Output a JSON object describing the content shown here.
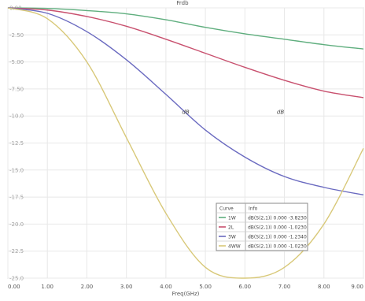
{
  "chart_data": {
    "type": "line",
    "title": "Frdb",
    "xlabel": "Freq(GHz)",
    "ylabel": "",
    "xlim": [
      0,
      9
    ],
    "ylim": [
      -25,
      0
    ],
    "grid": true,
    "x_ticks": [
      0,
      1,
      2,
      3,
      4,
      5,
      6,
      7,
      8,
      9
    ],
    "x_tick_labels": [
      "0.00",
      "1.00",
      "2.00",
      "3.00",
      "4.00",
      "5.00",
      "6.00",
      "7.00",
      "8.00",
      "9.00"
    ],
    "y_ticks": [
      0,
      -2.5,
      -5,
      -7.5,
      -10,
      -12.5,
      -15,
      -17.5,
      -20,
      -22.5,
      -25
    ],
    "y_tick_labels": [
      "0.00",
      "-2.50",
      "-5.00",
      "-7.50",
      "-10.0",
      "-12.5",
      "-15.0",
      "-17.5",
      "-20.0",
      "-22.5",
      "-25.0"
    ],
    "series": [
      {
        "name": "1W",
        "color": "#5fae7e",
        "x": [
          0,
          1,
          2,
          3,
          4,
          5,
          6,
          7,
          8,
          9
        ],
        "y": [
          0,
          -0.05,
          -0.25,
          -0.55,
          -1.1,
          -1.8,
          -2.4,
          -2.9,
          -3.4,
          -3.8
        ]
      },
      {
        "name": "2L",
        "color": "#c8506e",
        "x": [
          0,
          1,
          2,
          3,
          4,
          5,
          6,
          7,
          8,
          9
        ],
        "y": [
          0,
          -0.2,
          -0.8,
          -1.7,
          -2.9,
          -4.2,
          -5.5,
          -6.7,
          -7.7,
          -8.3
        ]
      },
      {
        "name": "3W",
        "color": "#6a6ac0",
        "x": [
          0,
          1,
          2,
          3,
          4,
          5,
          6,
          7,
          8,
          9
        ],
        "y": [
          0,
          -0.5,
          -2.2,
          -4.8,
          -8.0,
          -11.3,
          -13.8,
          -15.6,
          -16.6,
          -17.3
        ]
      },
      {
        "name": "4WW",
        "color": "#d8c878",
        "x": [
          0,
          1,
          2,
          3,
          4,
          5,
          6,
          7,
          8,
          9
        ],
        "y": [
          0,
          -1.0,
          -5.0,
          -12.0,
          -19.0,
          -24.0,
          -25.0,
          -24.0,
          -20.0,
          -13.0
        ]
      }
    ],
    "curve_labels": [
      {
        "text": "dB",
        "x": 4.5,
        "y": -9.8
      },
      {
        "text": "dB",
        "x": 6.9,
        "y": -9.8
      }
    ],
    "legend": {
      "placement": "bottom-right",
      "header": [
        "Curve",
        "Info"
      ],
      "rows": [
        {
          "marker": "1W",
          "info": "dB(S(2,1)) 0.000 -3.8230"
        },
        {
          "marker": "2L",
          "info": "dB(S(2,1)) 0.000 -1.0230"
        },
        {
          "marker": "3W",
          "info": "dB(S(2,1)) 0.000 -1.2340"
        },
        {
          "marker": "4WW",
          "info": "dB(S(2,1)) 0.000 -1.0230"
        }
      ]
    }
  }
}
